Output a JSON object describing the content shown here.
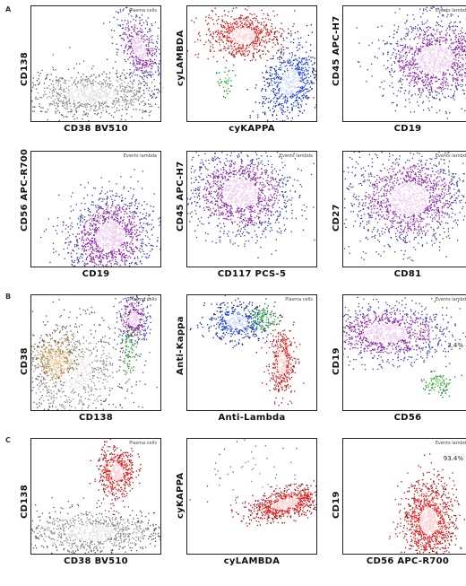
{
  "row_letters": [
    "A",
    "",
    "B",
    "C"
  ],
  "chart_data": [
    {
      "id": "p1",
      "type": "scatter",
      "xlabel": "CD38 BV510",
      "ylabel": "CD138",
      "gate_label": "Plasma cells",
      "populations": [
        "gray-density",
        "purple-cluster"
      ]
    },
    {
      "id": "p2",
      "type": "scatter",
      "xlabel": "cyKAPPA",
      "ylabel": "cyLAMBDA",
      "gate_label": "",
      "populations": [
        "red-cluster",
        "blue-cluster",
        "green-minor"
      ]
    },
    {
      "id": "p3",
      "type": "scatter",
      "xlabel": "CD19",
      "ylabel": "CD45 APC-H7",
      "gate_label": "Events lambda",
      "populations": [
        "purple-cluster"
      ]
    },
    {
      "id": "p4",
      "type": "scatter",
      "xlabel": "CD19",
      "ylabel": "CD56 APC-R700",
      "gate_label": "Events lambda",
      "populations": [
        "purple-cluster"
      ]
    },
    {
      "id": "p5",
      "type": "scatter",
      "xlabel": "CD117 PCS-5",
      "ylabel": "CD45 APC-H7",
      "gate_label": "Events lambda",
      "populations": [
        "purple-cluster"
      ]
    },
    {
      "id": "p6",
      "type": "scatter",
      "xlabel": "CD81",
      "ylabel": "CD27",
      "gate_label": "Events lambda",
      "populations": [
        "purple-cluster"
      ]
    },
    {
      "id": "p7",
      "type": "scatter",
      "xlabel": "CD138",
      "ylabel": "CD38",
      "gate_label": "Plasma cells",
      "populations": [
        "gray-density",
        "orange-cluster",
        "purple-cluster",
        "green-minor"
      ]
    },
    {
      "id": "p8",
      "type": "scatter",
      "xlabel": "Anti-Lambda",
      "ylabel": "Anti-Kappa",
      "gate_label": "Plasma cells",
      "populations": [
        "blue-cluster",
        "green-minor",
        "red-cluster"
      ]
    },
    {
      "id": "p9",
      "type": "scatter",
      "xlabel": "CD56",
      "ylabel": "CD19",
      "gate_label": "Events lambda",
      "pct_label": "3.4%",
      "populations": [
        "purple-cluster",
        "green-minor"
      ]
    },
    {
      "id": "p10",
      "type": "scatter",
      "xlabel": "CD38 BV510",
      "ylabel": "CD138",
      "gate_label": "Plasma cells",
      "populations": [
        "gray-density",
        "red-cluster"
      ]
    },
    {
      "id": "p11",
      "type": "scatter",
      "xlabel": "cyLAMBDA",
      "ylabel": "cyKAPPA",
      "gate_label": "",
      "populations": [
        "red-cluster",
        "blue-minor"
      ]
    },
    {
      "id": "p12",
      "type": "scatter",
      "xlabel": "CD56 APC-R700",
      "ylabel": "CD19",
      "gate_label": "Events lambda",
      "pct_label": "93.4%",
      "populations": [
        "red-cluster"
      ]
    }
  ]
}
